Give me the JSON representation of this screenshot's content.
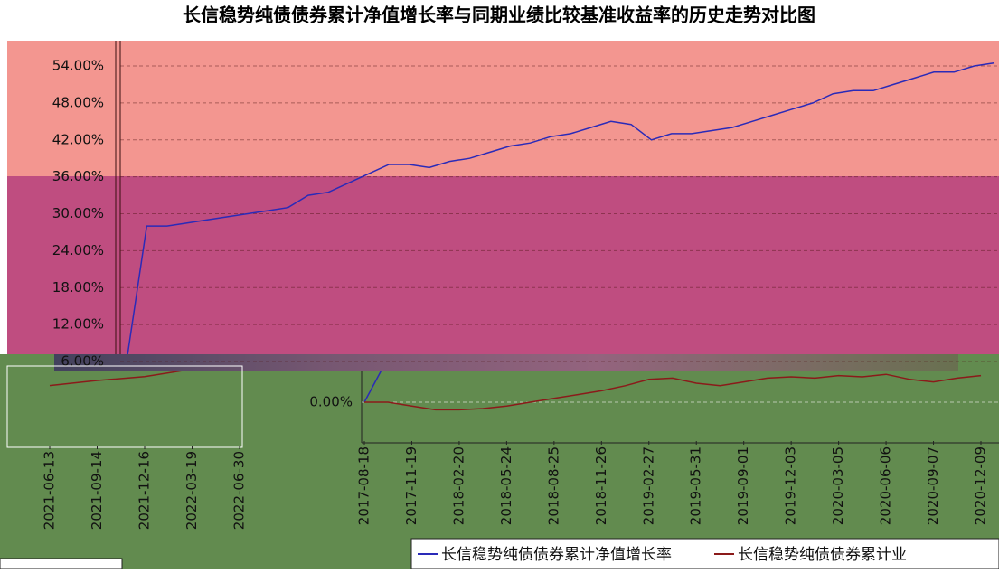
{
  "chart_data": [
    {
      "type": "line",
      "title": "长信稳势纯债债券累计净值增长率与同期业绩比较基准收益率的历史走势对比图",
      "categories": [
        null,
        null,
        null,
        null,
        null,
        null,
        null,
        null,
        null,
        null,
        null,
        null,
        null,
        null,
        null,
        null,
        null,
        null,
        null,
        null,
        null,
        null,
        null,
        null,
        null,
        null,
        null,
        null,
        null,
        null,
        null,
        null,
        null,
        null,
        null,
        null,
        null,
        null,
        null,
        null,
        null,
        null,
        null,
        null
      ],
      "series": [
        {
          "name": "长信稳势纯债债券累计净值增长率",
          "color": "#2a2ab8",
          "values": [
            6,
            28,
            28,
            28.5,
            29,
            29.5,
            30,
            30.5,
            31,
            33,
            33.5,
            35,
            36.5,
            38,
            38,
            37.5,
            38.5,
            39,
            40,
            41,
            41.5,
            42.5,
            43,
            44,
            45,
            44.5,
            42,
            43,
            43,
            43.5,
            44,
            45,
            46,
            47,
            48,
            49.5,
            50,
            50,
            51,
            52,
            53,
            53,
            54,
            54.5
          ]
        }
      ],
      "ylim": [
        5,
        57
      ],
      "yticks": [
        {
          "value": 6,
          "label": "6.00%"
        },
        {
          "value": 12,
          "label": "12.00%"
        },
        {
          "value": 18,
          "label": "18.00%"
        },
        {
          "value": 24,
          "label": "24.00%"
        },
        {
          "value": 30,
          "label": "30.00%"
        },
        {
          "value": 36,
          "label": "36.00%"
        },
        {
          "value": 42,
          "label": "42.00%"
        },
        {
          "value": 48,
          "label": "48.00%"
        },
        {
          "value": 54,
          "label": "54.00%"
        }
      ],
      "grid": true
    },
    {
      "type": "line",
      "categories": [
        "2017-08-18",
        null,
        "2017-11-19",
        null,
        "2018-02-20",
        null,
        "2018-05-24",
        null,
        "2018-08-25",
        null,
        "2018-11-26",
        null,
        "2019-02-27",
        null,
        "2019-05-31",
        null,
        "2019-09-01",
        null,
        "2019-12-03",
        null,
        "2020-03-05",
        null,
        "2020-06-06",
        null,
        "2020-09-07",
        null,
        "2020-12-09"
      ],
      "series": [
        {
          "name": "长信稳势纯债债券累计净值增长率",
          "color": "#2a2ab8",
          "values": [
            0,
            3.5,
            null,
            null,
            null,
            null,
            null,
            null,
            null,
            null,
            null,
            null,
            null,
            null,
            null,
            null,
            null,
            null,
            null,
            null,
            null,
            null,
            null,
            null,
            null,
            null,
            null
          ]
        },
        {
          "name": "长信稳势纯债债券累计业",
          "color": "#8b1a1a",
          "values": [
            0,
            0,
            -0.3,
            -0.6,
            -0.6,
            -0.5,
            -0.3,
            0,
            0.3,
            0.6,
            0.9,
            1.3,
            1.8,
            1.9,
            1.5,
            1.3,
            1.6,
            1.9,
            2.0,
            1.9,
            2.1,
            2.0,
            2.2,
            1.8,
            1.6,
            1.9,
            2.1
          ]
        }
      ],
      "ylim": [
        -2.5,
        2.5
      ],
      "yticks": [
        {
          "value": 0,
          "label": "0.00%"
        }
      ],
      "grid": true
    },
    {
      "type": "line",
      "categories": [
        "2021-06-13",
        "2021-09-14",
        "2021-12-16",
        "2022-03-19",
        "2022-06-30"
      ],
      "series": [
        {
          "name": "长信稳势纯债债券累计业",
          "color": "#8b1a1a",
          "values": [
            0.6,
            1.0,
            1.3,
            1.9,
            2.1
          ]
        }
      ],
      "ylim": [
        -2.5,
        2.5
      ],
      "grid": true
    }
  ]
}
